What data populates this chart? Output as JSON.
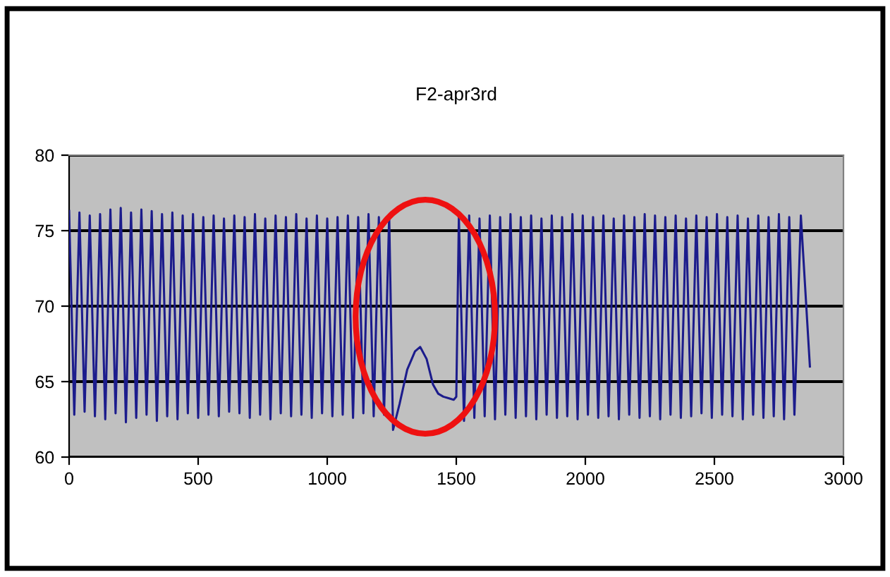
{
  "chart_data": {
    "type": "line",
    "title": "F2-apr3rd",
    "x": [
      0,
      20,
      40,
      60,
      80,
      100,
      120,
      140,
      160,
      180,
      200,
      220,
      240,
      260,
      280,
      300,
      320,
      340,
      360,
      380,
      400,
      420,
      440,
      460,
      480,
      500,
      520,
      540,
      560,
      580,
      600,
      620,
      640,
      660,
      680,
      700,
      720,
      740,
      760,
      780,
      800,
      820,
      840,
      860,
      880,
      900,
      920,
      940,
      960,
      980,
      1000,
      1020,
      1040,
      1060,
      1080,
      1100,
      1120,
      1140,
      1160,
      1180,
      1200,
      1220,
      1240,
      1255,
      1280,
      1310,
      1340,
      1360,
      1385,
      1410,
      1430,
      1450,
      1470,
      1490,
      1500,
      1510,
      1530,
      1550,
      1570,
      1590,
      1610,
      1630,
      1650,
      1670,
      1690,
      1710,
      1730,
      1750,
      1770,
      1790,
      1810,
      1830,
      1850,
      1870,
      1890,
      1910,
      1930,
      1950,
      1970,
      1990,
      2010,
      2030,
      2050,
      2070,
      2090,
      2110,
      2130,
      2150,
      2170,
      2190,
      2210,
      2230,
      2250,
      2270,
      2290,
      2310,
      2330,
      2350,
      2370,
      2390,
      2410,
      2430,
      2450,
      2470,
      2490,
      2510,
      2530,
      2550,
      2570,
      2590,
      2610,
      2630,
      2650,
      2670,
      2690,
      2710,
      2730,
      2750,
      2770,
      2790,
      2810,
      2835,
      2870
    ],
    "series": [
      {
        "color": "#1c1c8c",
        "values": [
          76.3,
          62.8,
          76.2,
          63.0,
          76.0,
          62.7,
          76.1,
          62.5,
          76.4,
          62.9,
          76.5,
          62.3,
          76.2,
          62.6,
          76.4,
          62.8,
          76.3,
          62.4,
          76.1,
          62.7,
          76.2,
          62.5,
          76.0,
          62.9,
          76.1,
          62.6,
          75.9,
          62.8,
          76.0,
          62.7,
          75.8,
          63.0,
          76.0,
          62.9,
          75.9,
          62.6,
          76.1,
          62.8,
          75.8,
          62.5,
          76.0,
          62.9,
          75.9,
          62.7,
          76.1,
          62.8,
          75.8,
          62.6,
          76.0,
          62.9,
          75.8,
          62.7,
          75.9,
          62.8,
          76.0,
          62.6,
          75.9,
          62.9,
          76.1,
          62.7,
          75.9,
          62.8,
          76.0,
          61.8,
          63.5,
          65.8,
          67.0,
          67.3,
          66.5,
          64.8,
          64.2,
          64.0,
          63.9,
          63.8,
          64.0,
          75.9,
          62.4,
          76.0,
          62.6,
          75.8,
          62.7,
          76.0,
          62.5,
          75.9,
          62.8,
          76.1,
          62.6,
          75.9,
          62.7,
          76.0,
          62.5,
          75.8,
          62.8,
          76.0,
          62.6,
          75.9,
          62.7,
          76.1,
          62.5,
          76.0,
          62.8,
          75.9,
          62.6,
          76.0,
          62.7,
          75.8,
          62.5,
          76.0,
          62.8,
          75.9,
          62.6,
          76.1,
          62.7,
          76.0,
          62.5,
          75.9,
          62.8,
          76.0,
          62.6,
          75.8,
          62.7,
          76.0,
          62.9,
          75.9,
          62.6,
          76.1,
          62.8,
          75.9,
          62.7,
          76.0,
          62.5,
          75.8,
          62.8,
          76.0,
          62.6,
          75.9,
          62.7,
          76.1,
          62.5,
          75.9,
          62.8,
          76.0,
          66.0
        ]
      }
    ],
    "xlim": [
      0,
      3000
    ],
    "xticks": [
      0,
      500,
      1000,
      1500,
      2000,
      2500,
      3000
    ],
    "ylim": [
      60,
      80
    ],
    "yticks": [
      60,
      65,
      70,
      75,
      80
    ],
    "grid": "y",
    "legend": false,
    "marker": "none",
    "line_style": "solid"
  }
}
